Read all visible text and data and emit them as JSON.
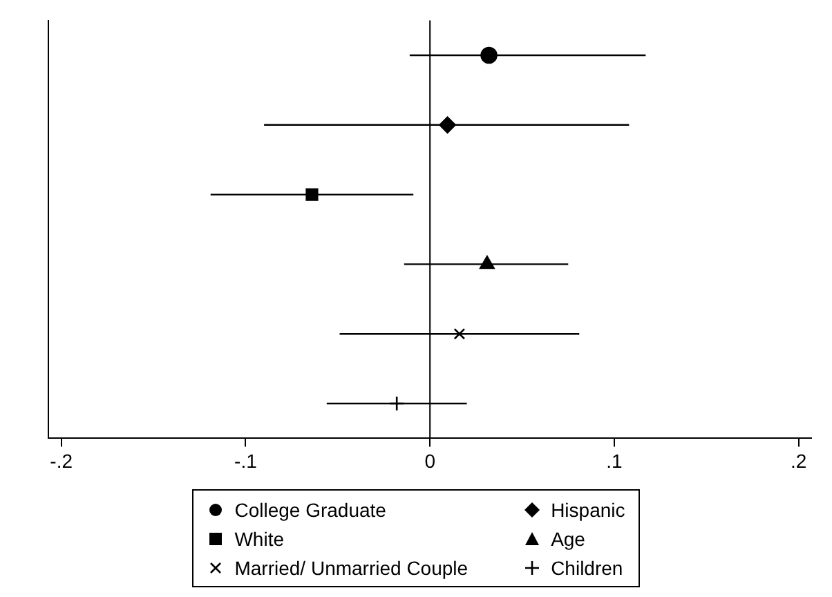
{
  "chart_data": {
    "type": "scatter",
    "orientation": "horizontal",
    "categories": [
      null,
      null,
      null,
      null,
      null,
      null
    ],
    "xlim": [
      -0.207,
      0.207
    ],
    "xticks": [
      {
        "value": -0.2,
        "label": "-.2"
      },
      {
        "value": -0.1,
        "label": "-.1"
      },
      {
        "value": 0,
        "label": "0"
      },
      {
        "value": 0.1,
        "label": ".1"
      },
      {
        "value": 0.2,
        "label": ".2"
      }
    ],
    "legend": "bottom",
    "grid": false,
    "ref_lines": [
      {
        "axis": "x",
        "value": 0
      }
    ],
    "series": [
      {
        "name": "College Graduate",
        "color": "#000000",
        "marker": "circle",
        "values": [
          0.032,
          null,
          null,
          null,
          null,
          null
        ],
        "errors": [
          [
            -0.011,
            0.117
          ],
          null,
          null,
          null,
          null,
          null
        ]
      },
      {
        "name": "Hispanic",
        "color": "#000000",
        "marker": "diamond",
        "values": [
          null,
          0.0095,
          null,
          null,
          null,
          null
        ],
        "errors": [
          null,
          [
            -0.09,
            0.108
          ],
          null,
          null,
          null,
          null
        ]
      },
      {
        "name": "White",
        "color": "#000000",
        "marker": "square",
        "values": [
          null,
          null,
          -0.064,
          null,
          null,
          null
        ],
        "errors": [
          null,
          null,
          [
            -0.119,
            -0.009
          ],
          null,
          null,
          null
        ]
      },
      {
        "name": "Age",
        "color": "#000000",
        "marker": "triangle",
        "values": [
          null,
          null,
          null,
          0.031,
          null,
          null
        ],
        "errors": [
          null,
          null,
          null,
          [
            -0.014,
            0.075
          ],
          null,
          null
        ]
      },
      {
        "name": "Married/ Unmarried Couple",
        "color": "#000000",
        "marker": "cross",
        "values": [
          null,
          null,
          null,
          null,
          0.016,
          null
        ],
        "errors": [
          null,
          null,
          null,
          null,
          [
            -0.049,
            0.081
          ],
          null
        ]
      },
      {
        "name": "Children",
        "color": "#000000",
        "marker": "plus",
        "values": [
          null,
          null,
          null,
          null,
          null,
          -0.018
        ],
        "errors": [
          null,
          null,
          null,
          null,
          null,
          [
            -0.056,
            0.02
          ]
        ]
      }
    ]
  }
}
